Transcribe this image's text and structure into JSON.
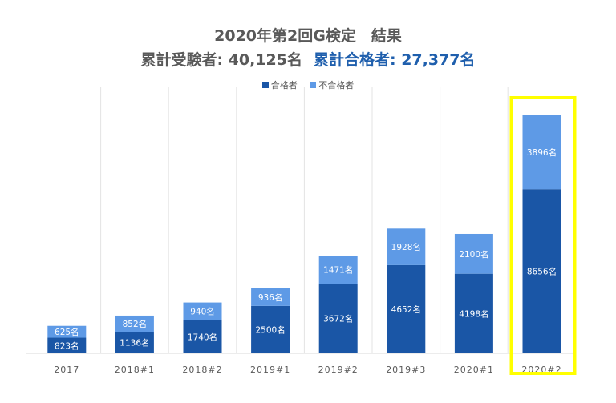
{
  "chart_data": {
    "type": "bar",
    "stacked": true,
    "title": "2020年第2回G検定　結果",
    "subtitle": {
      "examinees_label": "累計受験者: 40,125名",
      "passers_label": "累計合格者: 27,377名"
    },
    "categories": [
      "2017",
      "2018#1",
      "2018#2",
      "2019#1",
      "2019#2",
      "2019#3",
      "2020#1",
      "2020#2"
    ],
    "series": [
      {
        "name": "合格者",
        "color": "#1a56a6",
        "values": [
          823,
          1136,
          1740,
          2500,
          3672,
          4652,
          4198,
          8656
        ]
      },
      {
        "name": "不合格者",
        "color": "#5e9ae6",
        "values": [
          625,
          852,
          940,
          936,
          1471,
          1928,
          2100,
          3896
        ]
      }
    ],
    "label_suffix": "名",
    "ylim": [
      0,
      12552
    ],
    "grid": "vertical-category-separators",
    "legend": "top-center",
    "highlight": {
      "category": "2020#2",
      "color": "#ffff00"
    },
    "xlabel": "",
    "ylabel": ""
  }
}
